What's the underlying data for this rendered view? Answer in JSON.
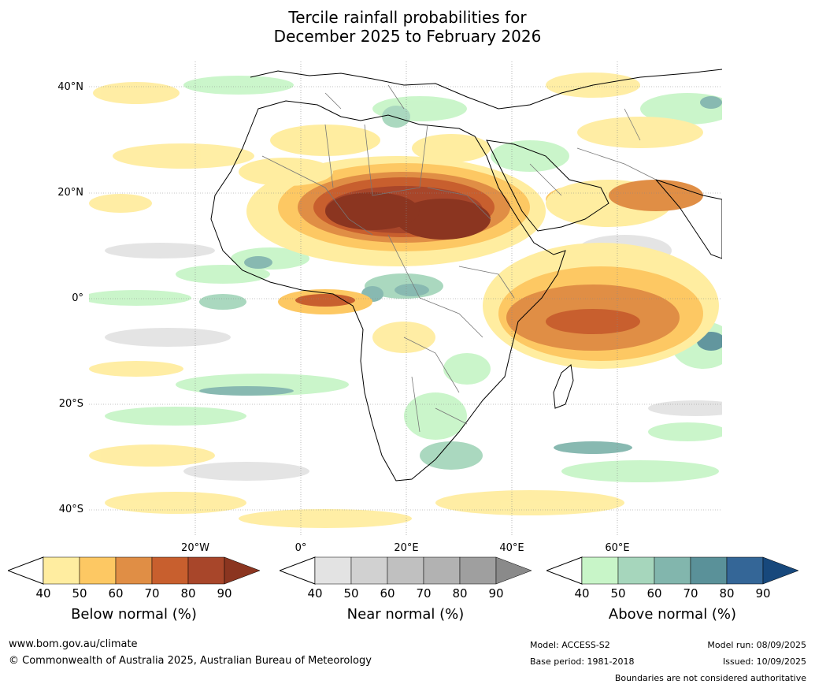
{
  "title_line1": "Tercile rainfall probabilities for",
  "title_line2": "December 2025 to February 2026",
  "map": {
    "lat_labels": [
      "40°N",
      "20°N",
      "0°",
      "20°S",
      "40°S"
    ],
    "lon_labels": [
      "20°W",
      "0°",
      "20°E",
      "40°E",
      "60°E"
    ]
  },
  "colorbars": [
    {
      "caption": "Below normal (%)",
      "ticks": [
        "40",
        "50",
        "60",
        "70",
        "80",
        "90"
      ],
      "colors": [
        "#ffeda0",
        "#fdc863",
        "#e08e45",
        "#c85f2e",
        "#a8462a",
        "#8b3520"
      ]
    },
    {
      "caption": "Near normal (%)",
      "ticks": [
        "40",
        "50",
        "60",
        "70",
        "80",
        "90"
      ],
      "colors": [
        "#e3e3e3",
        "#d1d1d1",
        "#c0c0c0",
        "#b2b2b2",
        "#9f9f9f",
        "#8a8a8a"
      ]
    },
    {
      "caption": "Above normal (%)",
      "ticks": [
        "40",
        "50",
        "60",
        "70",
        "80",
        "90"
      ],
      "colors": [
        "#c8f5c8",
        "#a6d6bc",
        "#82b6ad",
        "#5a9199",
        "#346697",
        "#17487c"
      ]
    }
  ],
  "footer": {
    "website": "www.bom.gov.au/climate",
    "copyright": "© Commonwealth of Australia 2025, Australian Bureau of Meteorology",
    "model": "Model: ACCESS-S2",
    "base_period": "Base period: 1981-2018",
    "model_run": "Model run: 08/09/2025",
    "issued": "Issued: 10/09/2025",
    "disclaimer": "Boundaries are not considered authoritative"
  }
}
